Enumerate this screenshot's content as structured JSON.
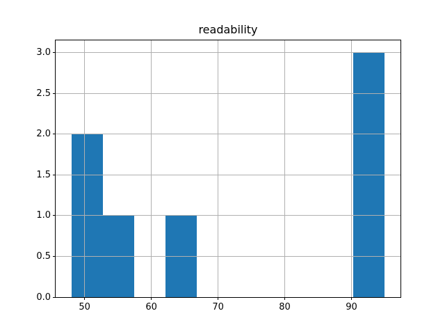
{
  "chart_data": {
    "type": "bar",
    "chart_kind": "histogram",
    "title": "readability",
    "xlabel": "",
    "ylabel": "",
    "bin_edges": [
      48.0,
      52.7,
      57.4,
      62.1,
      66.8,
      71.5,
      76.2,
      80.9,
      85.6,
      90.3,
      95.0
    ],
    "counts": [
      2,
      1,
      0,
      1,
      0,
      0,
      0,
      0,
      0,
      3
    ],
    "xticks": [
      50,
      60,
      70,
      80,
      90
    ],
    "xtick_labels": [
      "50",
      "60",
      "70",
      "80",
      "90"
    ],
    "yticks": [
      0.0,
      0.5,
      1.0,
      1.5,
      2.0,
      2.5,
      3.0
    ],
    "ytick_labels": [
      "0.0",
      "0.5",
      "1.0",
      "1.5",
      "2.0",
      "2.5",
      "3.0"
    ],
    "xlim": [
      45.65,
      97.35
    ],
    "ylim": [
      0,
      3.15
    ],
    "grid": true,
    "grid_above_bars": true,
    "legend": false,
    "colors": {
      "bar": "#1f77b4",
      "grid": "#b0b0b0",
      "spine": "#000000",
      "background": "#ffffff",
      "text": "#000000"
    }
  }
}
